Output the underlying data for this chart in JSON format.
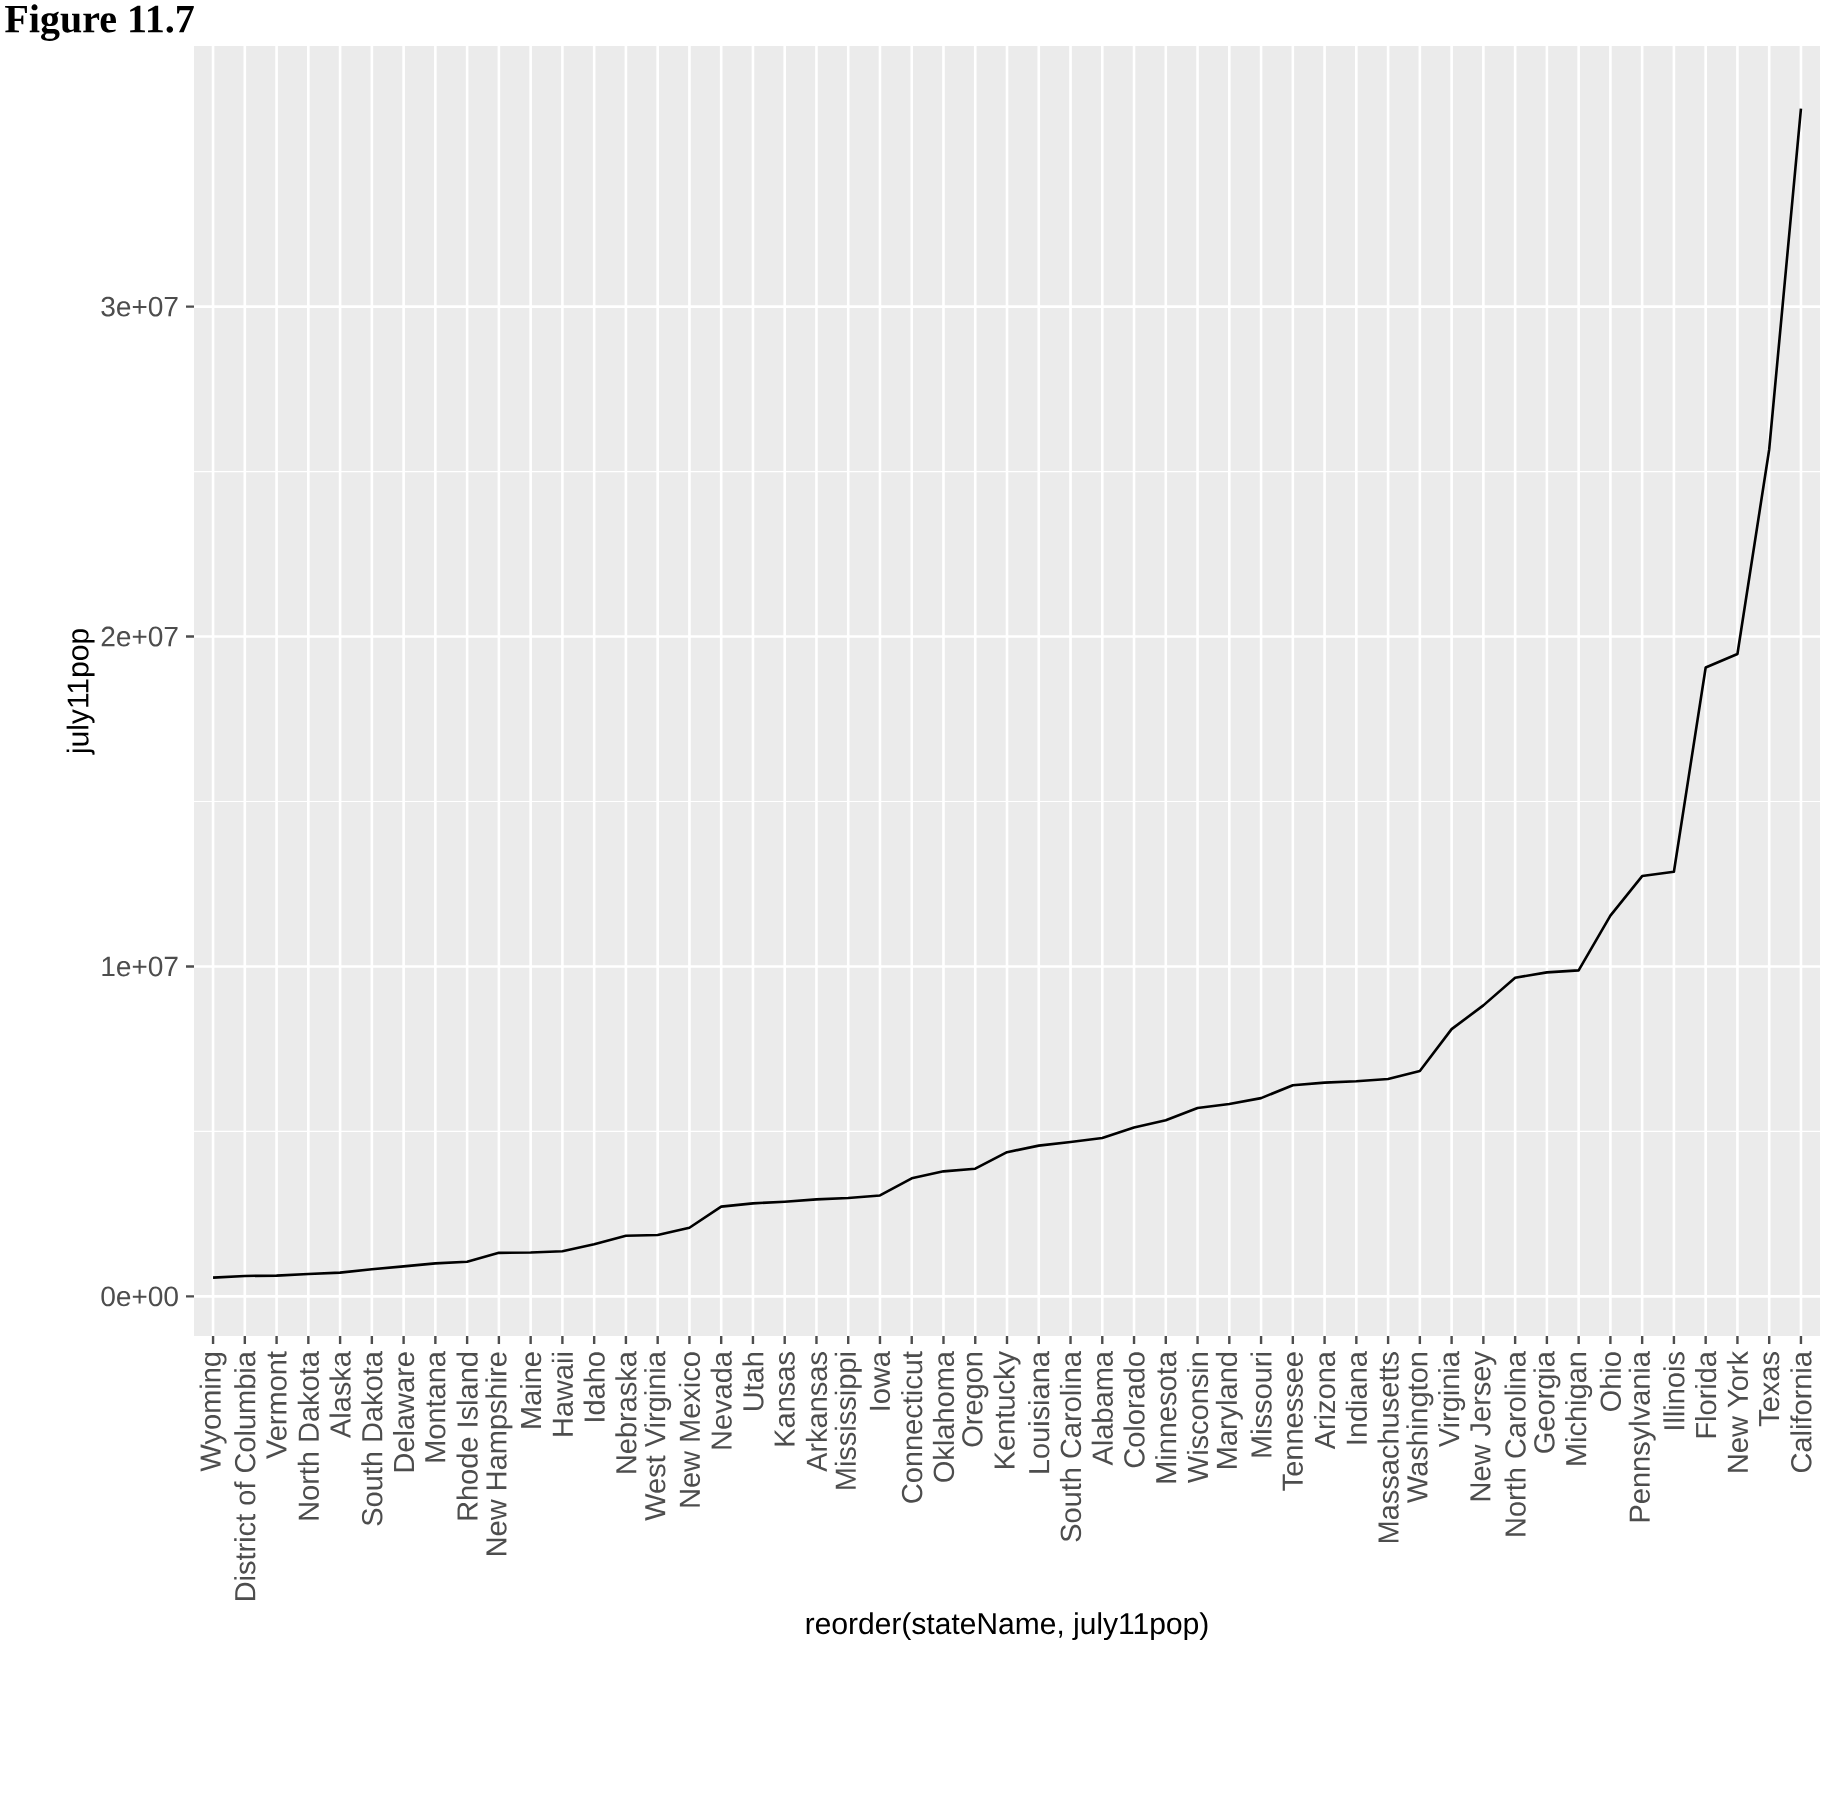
{
  "chart_data": {
    "type": "line",
    "title": "Figure 11.7",
    "xlabel": "reorder(stateName, july11pop)",
    "ylabel": "july11pop",
    "categories": [
      "Wyoming",
      "District of Columbia",
      "Vermont",
      "North Dakota",
      "Alaska",
      "South Dakota",
      "Delaware",
      "Montana",
      "Rhode Island",
      "New Hampshire",
      "Maine",
      "Hawaii",
      "Idaho",
      "Nebraska",
      "West Virginia",
      "New Mexico",
      "Nevada",
      "Utah",
      "Kansas",
      "Arkansas",
      "Mississippi",
      "Iowa",
      "Connecticut",
      "Oklahoma",
      "Oregon",
      "Kentucky",
      "Louisiana",
      "South Carolina",
      "Alabama",
      "Colorado",
      "Minnesota",
      "Wisconsin",
      "Maryland",
      "Missouri",
      "Tennessee",
      "Arizona",
      "Indiana",
      "Massachusetts",
      "Washington",
      "Virginia",
      "New Jersey",
      "North Carolina",
      "Georgia",
      "Michigan",
      "Ohio",
      "Pennsylvania",
      "Illinois",
      "Florida",
      "New York",
      "Texas",
      "California"
    ],
    "series": [
      {
        "color": "#000000",
        "values": [
          570000,
          620000,
          630000,
          680000,
          720000,
          820000,
          910000,
          1000000,
          1050000,
          1320000,
          1330000,
          1370000,
          1580000,
          1840000,
          1860000,
          2080000,
          2720000,
          2820000,
          2870000,
          2940000,
          2980000,
          3060000,
          3580000,
          3790000,
          3870000,
          4370000,
          4570000,
          4680000,
          4800000,
          5120000,
          5340000,
          5710000,
          5830000,
          6010000,
          6400000,
          6480000,
          6520000,
          6590000,
          6830000,
          8100000,
          8820000,
          9660000,
          9820000,
          9880000,
          11540000,
          12740000,
          12870000,
          19060000,
          19470000,
          25670000,
          36000000
        ]
      }
    ],
    "ylim": [
      -1200000,
      37900000
    ],
    "yticks": [
      {
        "value": 0,
        "label": "0e+00"
      },
      {
        "value": 10000000,
        "label": "1e+07"
      },
      {
        "value": 20000000,
        "label": "2e+07"
      },
      {
        "value": 30000000,
        "label": "3e+07"
      }
    ],
    "grid": true,
    "marker": "none",
    "line_style": "solid"
  }
}
